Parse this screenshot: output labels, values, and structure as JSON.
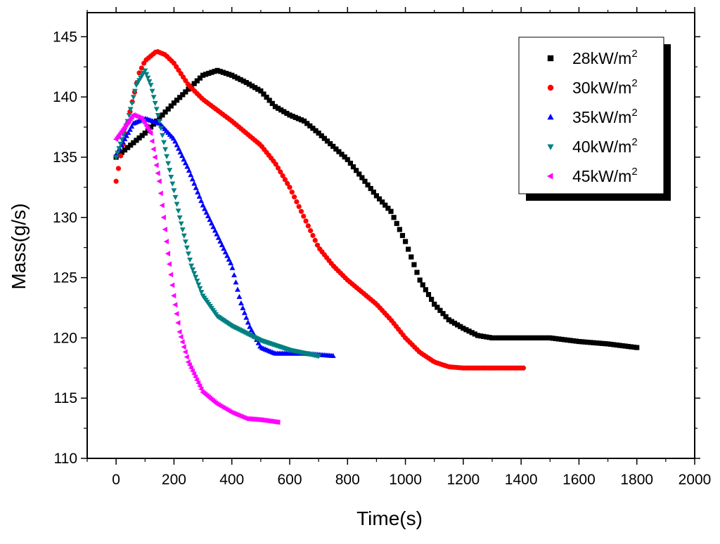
{
  "chart_data": {
    "type": "scatter",
    "title": "",
    "xlabel": "Time(s)",
    "ylabel": "Mass(g/s)",
    "xlim": [
      -100,
      2000
    ],
    "ylim": [
      110,
      147
    ],
    "xticks": [
      0,
      200,
      400,
      600,
      800,
      1000,
      1200,
      1400,
      1600,
      1800,
      2000
    ],
    "yticks": [
      110,
      115,
      120,
      125,
      130,
      135,
      140,
      145
    ],
    "xtick_labels": [
      "0",
      "200",
      "400",
      "600",
      "800",
      "1000",
      "1200",
      "1400",
      "1600",
      "1800",
      "2000"
    ],
    "ytick_labels": [
      "110",
      "115",
      "120",
      "125",
      "130",
      "135",
      "140",
      "145"
    ],
    "legend_position": "top-right",
    "series": [
      {
        "name": "28kW/m2",
        "label_base": "28kW/m",
        "label_sup": "2",
        "marker": "square",
        "color": "#000000",
        "step": 10,
        "points": [
          [
            0,
            135
          ],
          [
            100,
            137
          ],
          [
            200,
            139.5
          ],
          [
            300,
            141.8
          ],
          [
            350,
            142.2
          ],
          [
            400,
            141.8
          ],
          [
            450,
            141.2
          ],
          [
            500,
            140.5
          ],
          [
            550,
            139.2
          ],
          [
            600,
            138.5
          ],
          [
            650,
            138
          ],
          [
            700,
            137
          ],
          [
            800,
            134.8
          ],
          [
            900,
            131.8
          ],
          [
            950,
            130.5
          ],
          [
            1000,
            128
          ],
          [
            1050,
            124.8
          ],
          [
            1100,
            122.8
          ],
          [
            1150,
            121.5
          ],
          [
            1200,
            120.8
          ],
          [
            1250,
            120.2
          ],
          [
            1300,
            120
          ],
          [
            1400,
            120
          ],
          [
            1500,
            120
          ],
          [
            1600,
            119.7
          ],
          [
            1700,
            119.5
          ],
          [
            1800,
            119.2
          ]
        ]
      },
      {
        "name": "30kW/m2",
        "label_base": "30kW/m",
        "label_sup": "2",
        "marker": "circle",
        "color": "#ff0000",
        "step": 8,
        "points": [
          [
            0,
            133
          ],
          [
            15,
            135
          ],
          [
            50,
            139
          ],
          [
            80,
            142
          ],
          [
            100,
            143
          ],
          [
            140,
            143.8
          ],
          [
            170,
            143.5
          ],
          [
            200,
            142.8
          ],
          [
            250,
            141
          ],
          [
            300,
            139.8
          ],
          [
            400,
            138
          ],
          [
            500,
            136
          ],
          [
            550,
            134.5
          ],
          [
            600,
            132.5
          ],
          [
            650,
            130
          ],
          [
            700,
            127.5
          ],
          [
            750,
            126
          ],
          [
            800,
            124.8
          ],
          [
            850,
            123.8
          ],
          [
            900,
            122.8
          ],
          [
            950,
            121.5
          ],
          [
            1000,
            120
          ],
          [
            1050,
            118.8
          ],
          [
            1100,
            118
          ],
          [
            1150,
            117.6
          ],
          [
            1200,
            117.5
          ],
          [
            1300,
            117.5
          ],
          [
            1410,
            117.5
          ]
        ]
      },
      {
        "name": "35kW/m2",
        "label_base": "35kW/m",
        "label_sup": "2",
        "marker": "triangle-up",
        "color": "#0000ff",
        "step": 6,
        "points": [
          [
            0,
            135.2
          ],
          [
            30,
            136.5
          ],
          [
            60,
            137.8
          ],
          [
            100,
            138.2
          ],
          [
            150,
            137.8
          ],
          [
            200,
            136.5
          ],
          [
            250,
            134
          ],
          [
            300,
            131
          ],
          [
            350,
            128.5
          ],
          [
            400,
            126
          ],
          [
            430,
            123
          ],
          [
            460,
            121
          ],
          [
            500,
            119.2
          ],
          [
            550,
            118.7
          ],
          [
            600,
            118.7
          ],
          [
            650,
            118.7
          ],
          [
            700,
            118.6
          ],
          [
            750,
            118.5
          ]
        ]
      },
      {
        "name": "40kW/m2",
        "label_base": "40kW/m",
        "label_sup": "2",
        "marker": "triangle-down",
        "color": "#008080",
        "step": 5,
        "points": [
          [
            0,
            135
          ],
          [
            40,
            138
          ],
          [
            70,
            141
          ],
          [
            100,
            142.2
          ],
          [
            120,
            141
          ],
          [
            150,
            138
          ],
          [
            180,
            134.5
          ],
          [
            220,
            130
          ],
          [
            260,
            126
          ],
          [
            300,
            123.5
          ],
          [
            350,
            121.8
          ],
          [
            400,
            121
          ],
          [
            500,
            119.8
          ],
          [
            600,
            119
          ],
          [
            700,
            118.5
          ]
        ]
      },
      {
        "name": "45kW/m2",
        "label_base": "45kW/m",
        "label_sup": "2",
        "marker": "triangle-left",
        "color": "#ff00ff",
        "step": 5,
        "points": [
          [
            0,
            136.5
          ],
          [
            30,
            137.5
          ],
          [
            60,
            138.5
          ],
          [
            90,
            138.2
          ],
          [
            120,
            137
          ],
          [
            150,
            133
          ],
          [
            180,
            127
          ],
          [
            200,
            123.5
          ],
          [
            220,
            120.5
          ],
          [
            250,
            118
          ],
          [
            300,
            115.5
          ],
          [
            350,
            114.5
          ],
          [
            400,
            113.8
          ],
          [
            450,
            113.3
          ],
          [
            500,
            113.2
          ],
          [
            560,
            113
          ]
        ]
      }
    ]
  }
}
